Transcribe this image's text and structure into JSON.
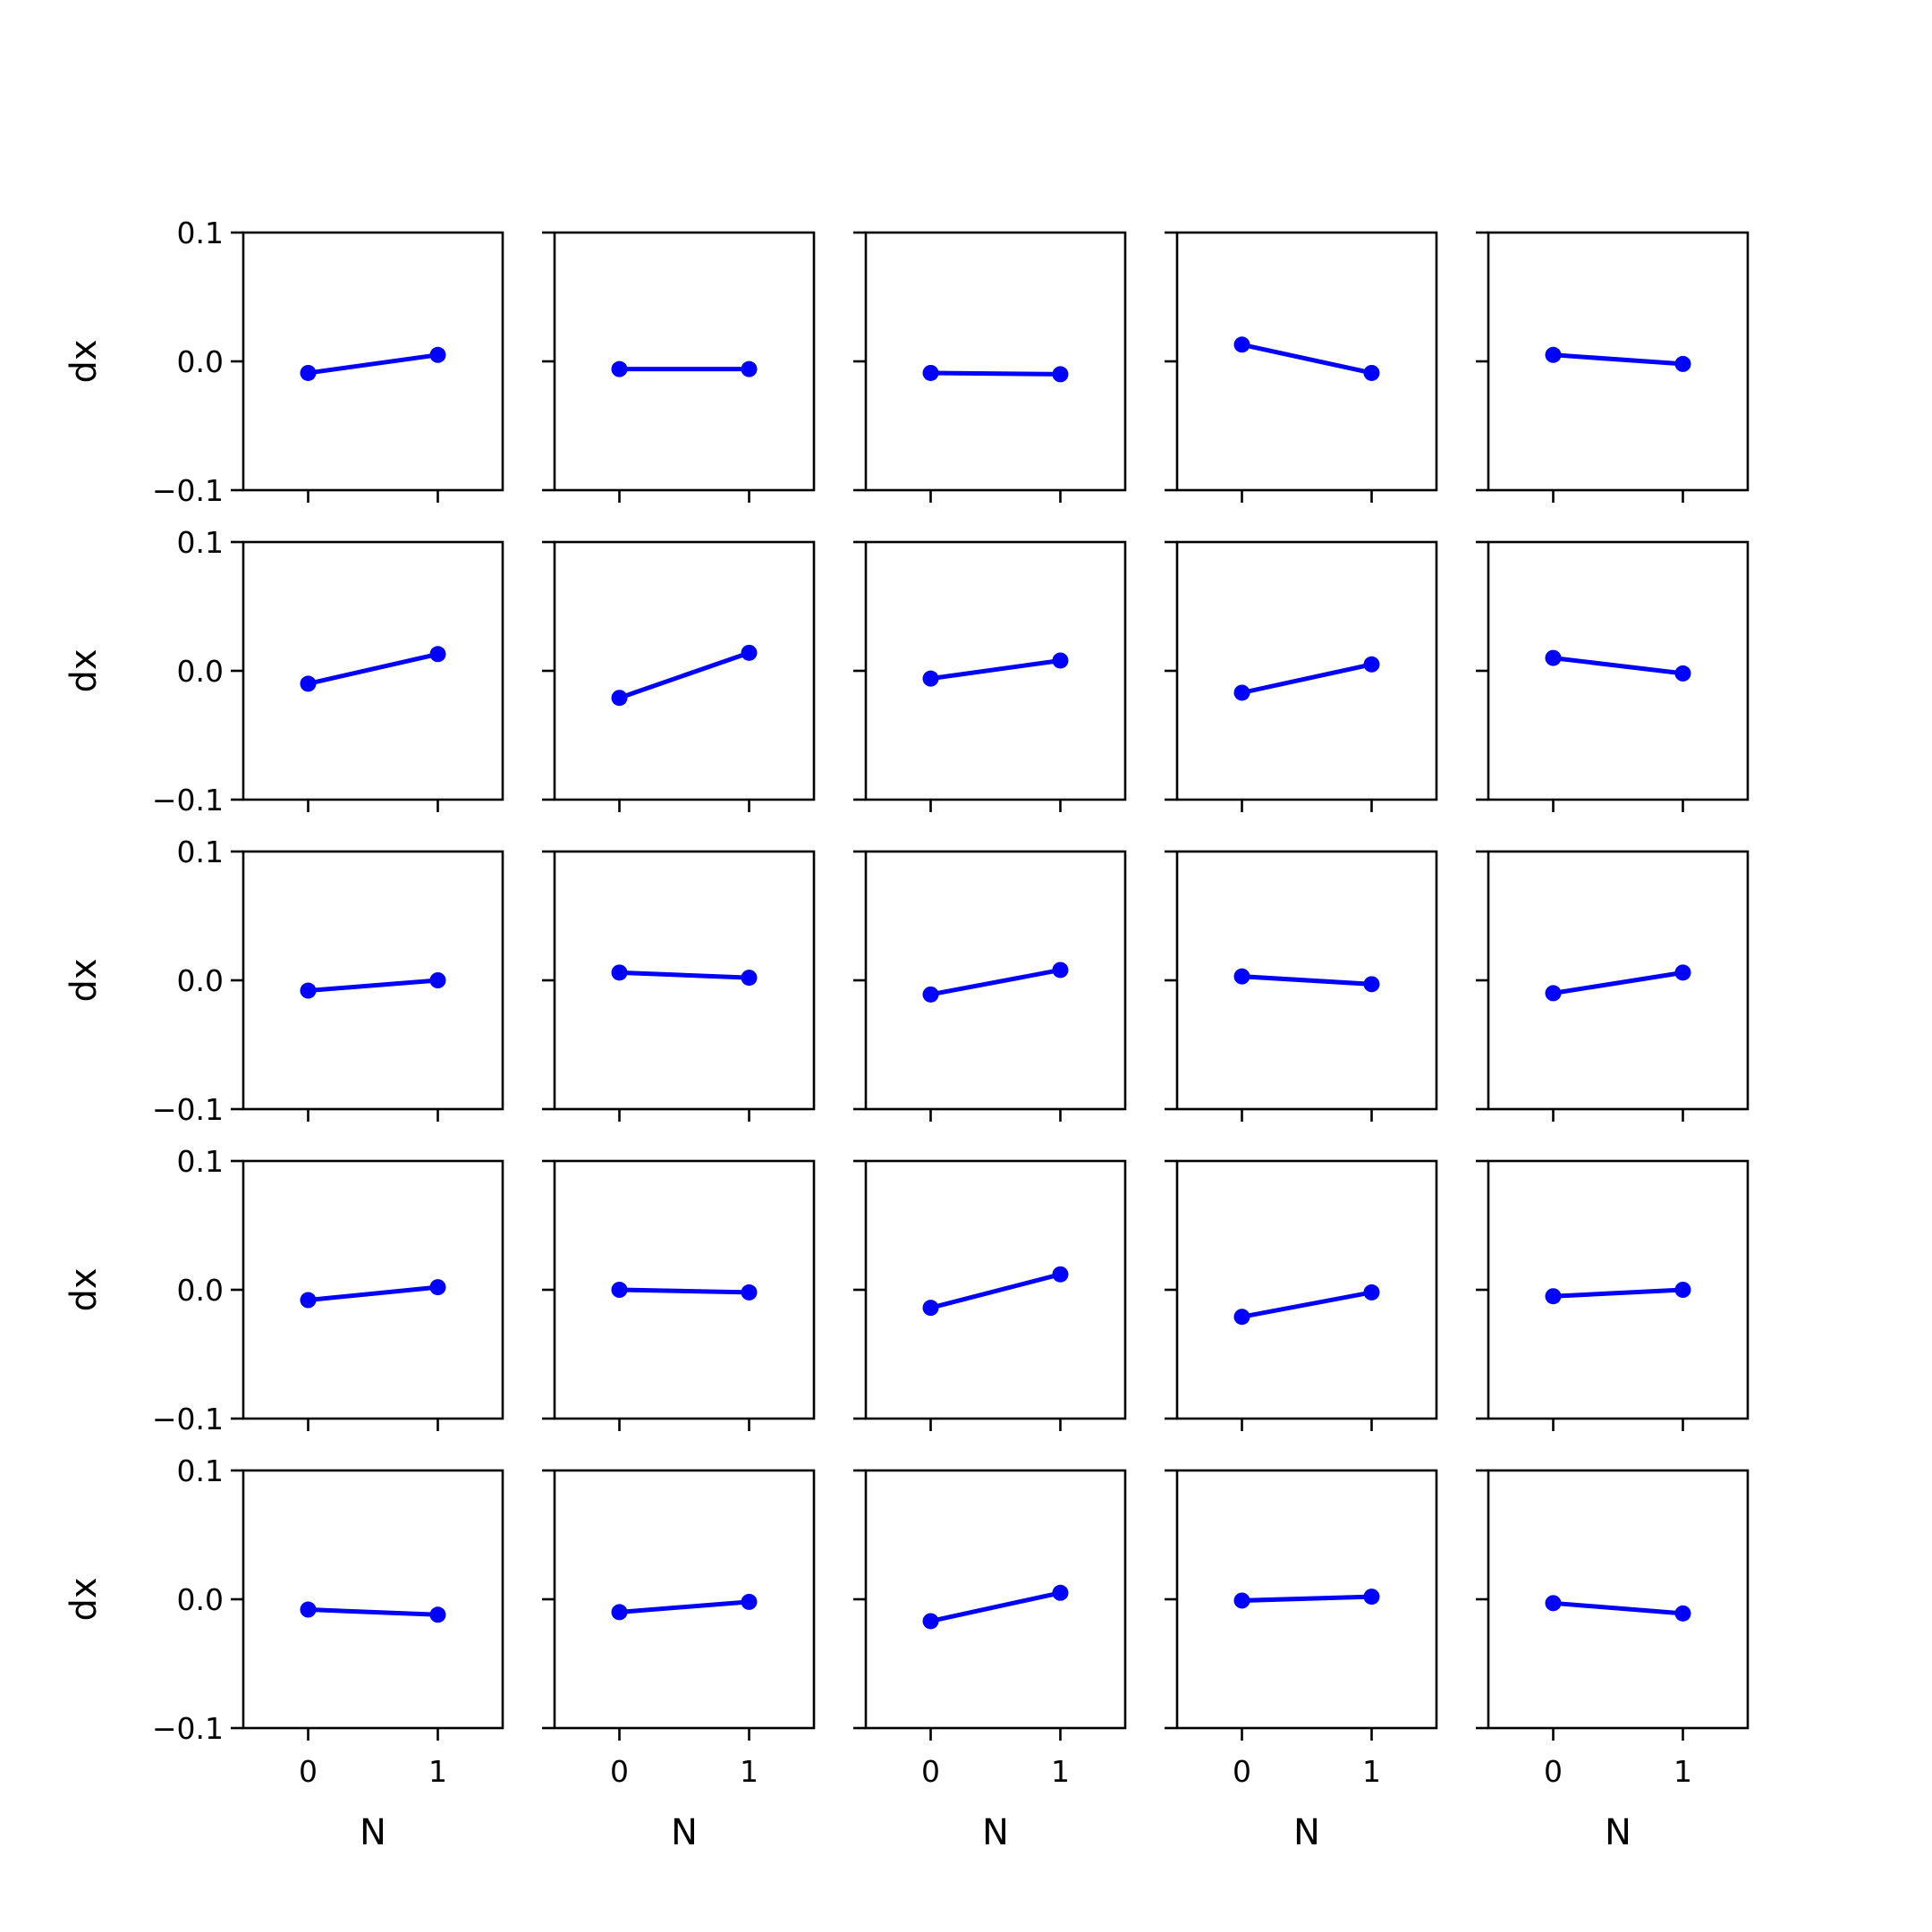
{
  "chart_data": {
    "type": "line",
    "layout": "5x5 small multiples",
    "xlabel": "N",
    "ylabel": "dx",
    "xticks": [
      "0",
      "1"
    ],
    "yticks": [
      "−0.1",
      "0.0",
      "0.1"
    ],
    "xlim": [
      -0.5,
      1.5
    ],
    "ylim": [
      -0.1,
      0.1
    ],
    "color": "#0000ff",
    "x": [
      0,
      1
    ],
    "panels": [
      [
        [
          -0.009,
          0.005
        ],
        [
          -0.006,
          -0.006
        ],
        [
          -0.009,
          -0.01
        ],
        [
          0.013,
          -0.009
        ],
        [
          0.005,
          -0.002
        ]
      ],
      [
        [
          -0.01,
          0.013
        ],
        [
          -0.021,
          0.014
        ],
        [
          -0.006,
          0.008
        ],
        [
          -0.017,
          0.005
        ],
        [
          0.01,
          -0.002
        ]
      ],
      [
        [
          -0.008,
          0.0
        ],
        [
          0.006,
          0.002
        ],
        [
          -0.011,
          0.008
        ],
        [
          0.003,
          -0.003
        ],
        [
          -0.01,
          0.006
        ]
      ],
      [
        [
          -0.008,
          0.002
        ],
        [
          0.0,
          -0.002
        ],
        [
          -0.014,
          0.012
        ],
        [
          -0.021,
          -0.002
        ],
        [
          -0.005,
          0.0
        ]
      ],
      [
        [
          -0.008,
          -0.012
        ],
        [
          -0.01,
          -0.002
        ],
        [
          -0.017,
          0.005
        ],
        [
          -0.001,
          0.002
        ],
        [
          -0.003,
          -0.011
        ]
      ]
    ]
  }
}
